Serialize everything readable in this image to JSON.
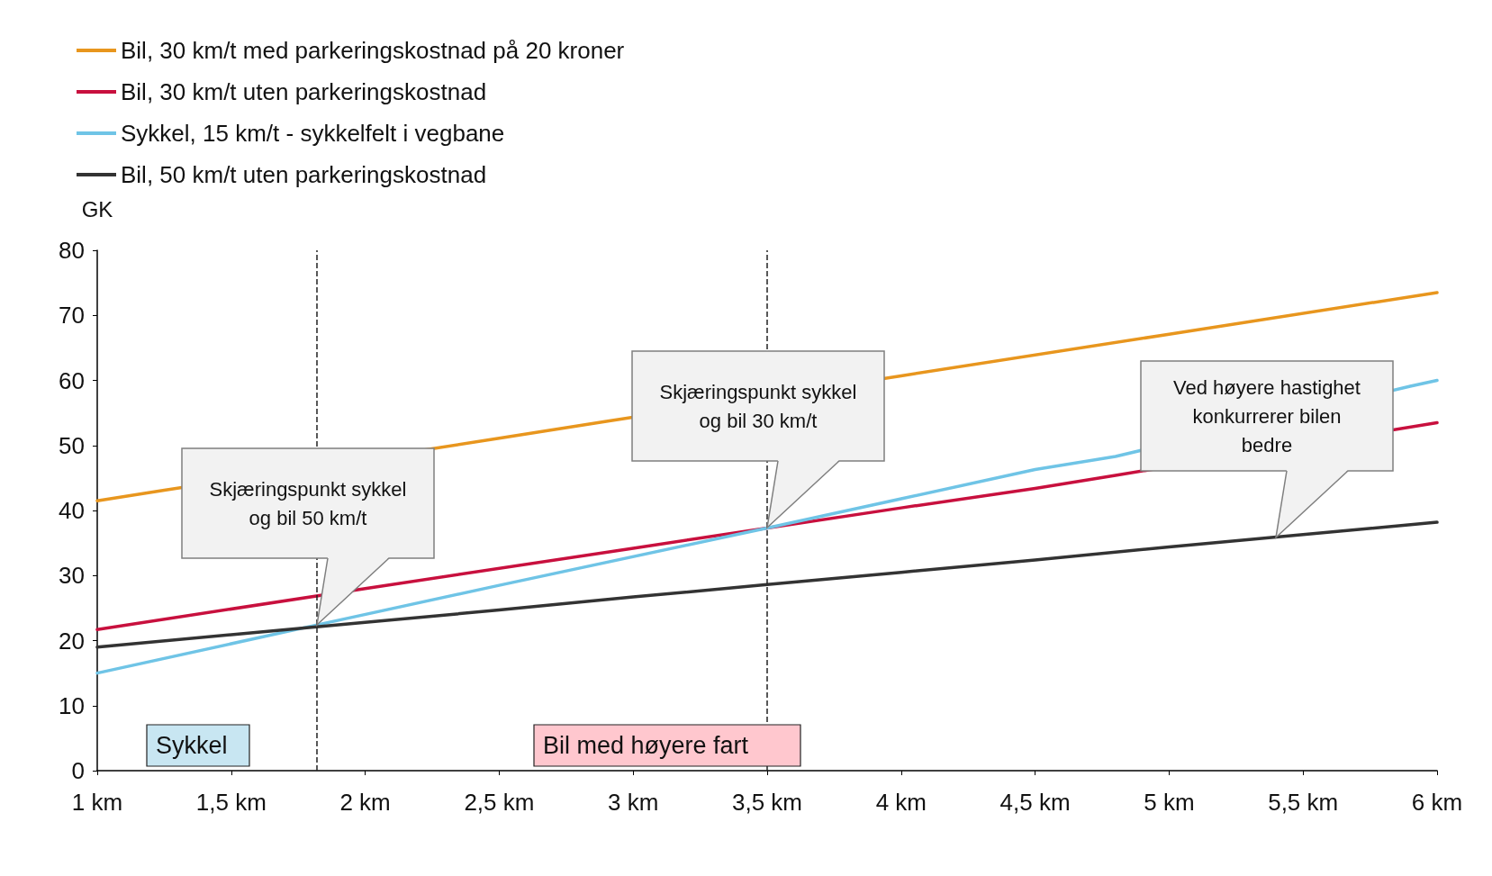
{
  "chart_data": {
    "type": "line",
    "ylabel": "GK",
    "x": [
      1,
      1.5,
      2,
      2.5,
      3,
      3.5,
      4,
      4.5,
      5,
      5.5,
      6
    ],
    "series": [
      {
        "name": "Bil, 30 km/t med parkeringskostnad på 20 kroner",
        "color": "#e8961e",
        "x": [
          1,
          1.25,
          2.5,
          2.9,
          4,
          5,
          6
        ],
        "values": [
          41.5,
          43.1,
          51.1,
          53.7,
          60.7,
          67.1,
          73.5
        ]
      },
      {
        "name": "Bil, 30 km/t uten parkeringskostnad",
        "color": "#c8103e",
        "x": [
          1,
          2,
          3,
          3.5,
          4,
          4.5,
          4.8,
          6
        ],
        "values": [
          21.7,
          28.0,
          34.2,
          37.3,
          40.4,
          43.4,
          45.4,
          53.5
        ]
      },
      {
        "name": "Sykkel, 15 km/t - sykkelfelt i vegbane",
        "color": "#6fc4e6",
        "x": [
          1,
          1.82,
          2.5,
          3.5,
          4,
          4.5,
          4.8,
          5.9,
          6
        ],
        "values": [
          15,
          22.4,
          28.5,
          37.3,
          41.8,
          46.3,
          48.3,
          59.1,
          60
        ]
      },
      {
        "name": "Bil, 50 km/t uten parkeringskostnad",
        "color": "#333333",
        "values": [
          19,
          20.9,
          22.8,
          24.7,
          26.7,
          28.6,
          30.5,
          32.4,
          34.4,
          36.3,
          38.2
        ]
      }
    ],
    "xlim": [
      1,
      6
    ],
    "xticks": [
      {
        "value": 1,
        "label": "1 km"
      },
      {
        "value": 1.5,
        "label": "1,5 km"
      },
      {
        "value": 2,
        "label": "2 km"
      },
      {
        "value": 2.5,
        "label": "2,5 km"
      },
      {
        "value": 3,
        "label": "3 km"
      },
      {
        "value": 3.5,
        "label": "3,5 km"
      },
      {
        "value": 4,
        "label": "4 km"
      },
      {
        "value": 4.5,
        "label": "4,5 km"
      },
      {
        "value": 5,
        "label": "5 km"
      },
      {
        "value": 5.5,
        "label": "5,5 km"
      },
      {
        "value": 6,
        "label": "6 km"
      }
    ],
    "ylim": [
      0,
      80
    ],
    "yticks": [
      0,
      10,
      20,
      30,
      40,
      50,
      60,
      70,
      80
    ],
    "ref_lines": [
      {
        "axis": "x",
        "value": 1.82,
        "line_style": "dashed",
        "color": "#222222"
      },
      {
        "axis": "x",
        "value": 3.5,
        "line_style": "dashed",
        "color": "#222222"
      }
    ],
    "annotations": [
      "Skjæringspunkt sykkel\nog bil 50 km/t",
      "Skjæringspunkt sykkel\nog bil 30 km/t",
      "Ved høyere hastighet\nkonkurrerer bilen\nbedre",
      "Sykkel",
      "Bil med høyere fart"
    ],
    "grid": false,
    "legend": "top left",
    "marker": "none",
    "line_style": "solid"
  }
}
